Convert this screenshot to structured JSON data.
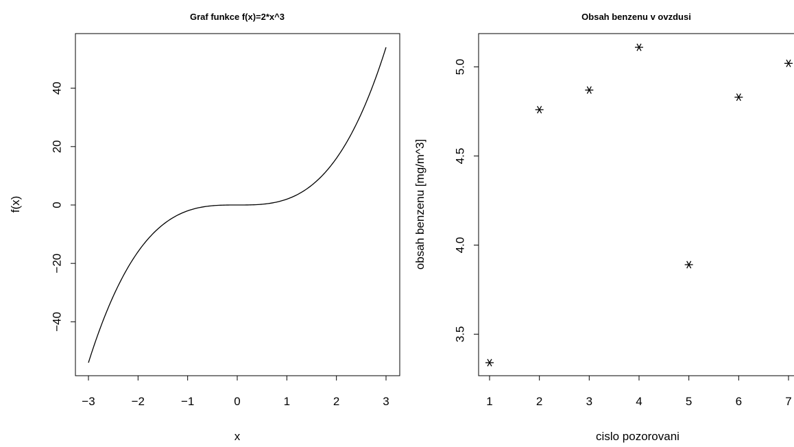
{
  "chart_data": [
    {
      "type": "line",
      "title": "Graf funkce f(x)=2*x^3",
      "xlabel": "x",
      "ylabel": "f(x)",
      "function": "2*x^3",
      "xlim": [
        -3,
        3
      ],
      "ylim": [
        -54,
        54
      ],
      "x_ticks": [
        -3,
        -2,
        -1,
        0,
        1,
        2,
        3
      ],
      "x_tick_labels": [
        "−3",
        "−2",
        "−1",
        "0",
        "1",
        "2",
        "3"
      ],
      "y_ticks": [
        -40,
        -20,
        0,
        20,
        40
      ],
      "y_tick_labels": [
        "−40",
        "−20",
        "0",
        "20",
        "40"
      ],
      "series": [
        {
          "x": [
            -3,
            -2.75,
            -2.5,
            -2.25,
            -2,
            -1.75,
            -1.5,
            -1.25,
            -1,
            -0.75,
            -0.5,
            -0.25,
            0,
            0.25,
            0.5,
            0.75,
            1,
            1.25,
            1.5,
            1.75,
            2,
            2.25,
            2.5,
            2.75,
            3
          ],
          "y": [
            -54,
            -41.59,
            -31.25,
            -22.78,
            -16,
            -10.72,
            -6.75,
            -3.91,
            -2,
            -0.84,
            -0.25,
            -0.03,
            0,
            0.03,
            0.25,
            0.84,
            2,
            3.91,
            6.75,
            10.72,
            16,
            22.78,
            31.25,
            41.59,
            54
          ]
        }
      ],
      "grid": false
    },
    {
      "type": "scatter",
      "title": "Obsah benzenu v ovzdusi",
      "xlabel": "cislo pozorovani",
      "ylabel": "obsah benzenu [mg/m^3]",
      "marker": "asterisk",
      "xlim": [
        1,
        7
      ],
      "ylim": [
        3.34,
        5.11
      ],
      "x_ticks": [
        1,
        2,
        3,
        4,
        5,
        6,
        7
      ],
      "x_tick_labels": [
        "1",
        "2",
        "3",
        "4",
        "5",
        "6",
        "7"
      ],
      "y_ticks": [
        3.5,
        4.0,
        4.5,
        5.0
      ],
      "y_tick_labels": [
        "3.5",
        "4.0",
        "4.5",
        "5.0"
      ],
      "series": [
        {
          "x": [
            1,
            2,
            3,
            4,
            5,
            6,
            7
          ],
          "y": [
            3.34,
            4.76,
            4.87,
            5.11,
            3.89,
            4.83,
            5.02
          ]
        }
      ],
      "grid": false
    }
  ]
}
